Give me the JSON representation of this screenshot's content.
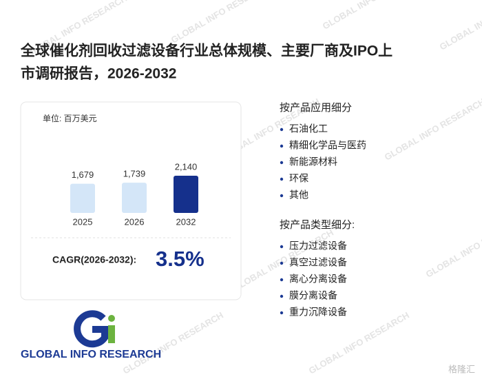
{
  "header": {
    "title_line1": "全球催化剂回收过滤设备行业总体规模、主要厂商及IPO上",
    "title_line2": "市调研报告，2026-2032"
  },
  "chart_data": {
    "type": "bar",
    "unit": "单位: 百万美元",
    "categories": [
      "2025",
      "2026",
      "2032"
    ],
    "values": [
      1679,
      1739,
      2140
    ],
    "value_labels": [
      "1,679",
      "1,739",
      "2,140"
    ],
    "colors": [
      "#d4e6f8",
      "#d4e6f8",
      "#15308c"
    ]
  },
  "cagr": {
    "label": "CAGR(2026-2032):",
    "value": "3.5%"
  },
  "segments": [
    {
      "heading": "按产品应用细分",
      "items": [
        "石油化工",
        "精细化学品与医药",
        "新能源材料",
        "环保",
        "其他"
      ]
    },
    {
      "heading": "按产品类型细分:",
      "items": [
        "压力过滤设备",
        "真空过滤设备",
        "离心分离设备",
        "膜分离设备",
        "重力沉降设备"
      ]
    }
  ],
  "logo": {
    "text": "GLOBAL INFO RESEARCH"
  },
  "watermark": {
    "text": "GLOBAL INFO RESEARCH",
    "source": "格隆汇"
  }
}
